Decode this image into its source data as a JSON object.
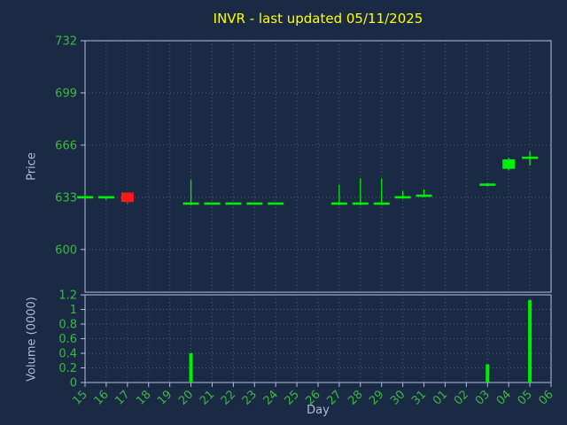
{
  "chart_data": {
    "type": "candlestick",
    "title": "INVR - last updated 05/11/2025",
    "xlabel": "Day",
    "ylabel": "Price",
    "ylabel2": "Volume (0000)",
    "grid": true,
    "legend": "none",
    "categories": [
      "15",
      "16",
      "17",
      "18",
      "19",
      "20",
      "21",
      "22",
      "23",
      "24",
      "25",
      "26",
      "27",
      "28",
      "29",
      "30",
      "31",
      "01",
      "02",
      "03",
      "04",
      "05",
      "06"
    ],
    "price_ticks": [
      732,
      699,
      666,
      633,
      600
    ],
    "price_range": [
      573,
      732
    ],
    "volume_ticks": [
      1.2,
      1,
      0.8,
      0.6,
      0.4,
      0.2,
      0
    ],
    "volume_range": [
      0,
      1.2
    ],
    "candles": [
      {
        "day": "15",
        "open": 633,
        "high": 634.5,
        "low": 632,
        "close": 633
      },
      {
        "day": "16",
        "open": 633,
        "high": 633.5,
        "low": 631.5,
        "close": 633
      },
      {
        "day": "17",
        "open": 636,
        "high": 636,
        "low": 629,
        "close": 630
      },
      {
        "day": "20",
        "open": 629,
        "high": 644,
        "low": 628,
        "close": 629
      },
      {
        "day": "21",
        "open": 629,
        "high": 629.5,
        "low": 628.5,
        "close": 629
      },
      {
        "day": "22",
        "open": 629,
        "high": 629.5,
        "low": 628.5,
        "close": 629
      },
      {
        "day": "23",
        "open": 629,
        "high": 629.5,
        "low": 628.5,
        "close": 629
      },
      {
        "day": "24",
        "open": 629,
        "high": 629.5,
        "low": 628.5,
        "close": 629
      },
      {
        "day": "27",
        "open": 629,
        "high": 641,
        "low": 628,
        "close": 629
      },
      {
        "day": "28",
        "open": 629,
        "high": 645,
        "low": 628,
        "close": 629
      },
      {
        "day": "29",
        "open": 629,
        "high": 645,
        "low": 628,
        "close": 629
      },
      {
        "day": "30",
        "open": 633,
        "high": 637,
        "low": 632,
        "close": 633
      },
      {
        "day": "31",
        "open": 634,
        "high": 638,
        "low": 633,
        "close": 634
      },
      {
        "day": "03",
        "open": 641,
        "high": 642,
        "low": 640,
        "close": 641
      },
      {
        "day": "04",
        "open": 651,
        "high": 658,
        "low": 650,
        "close": 657
      },
      {
        "day": "05",
        "open": 658,
        "high": 662,
        "low": 653,
        "close": 658
      }
    ],
    "volumes": [
      {
        "day": "20",
        "value": 0.4
      },
      {
        "day": "03",
        "value": 0.25
      },
      {
        "day": "05",
        "value": 1.13
      }
    ],
    "colors": {
      "background": "#1b2a44",
      "title": "#ffff00",
      "tick_label": "#3cb843",
      "axis_label": "#b0bcd8",
      "spine": "#b6c0da",
      "grid": "#4d5d80",
      "candle_up": "#00ee00",
      "candle_down": "#ff1a1a",
      "volume_bar": "#00ee00"
    }
  }
}
